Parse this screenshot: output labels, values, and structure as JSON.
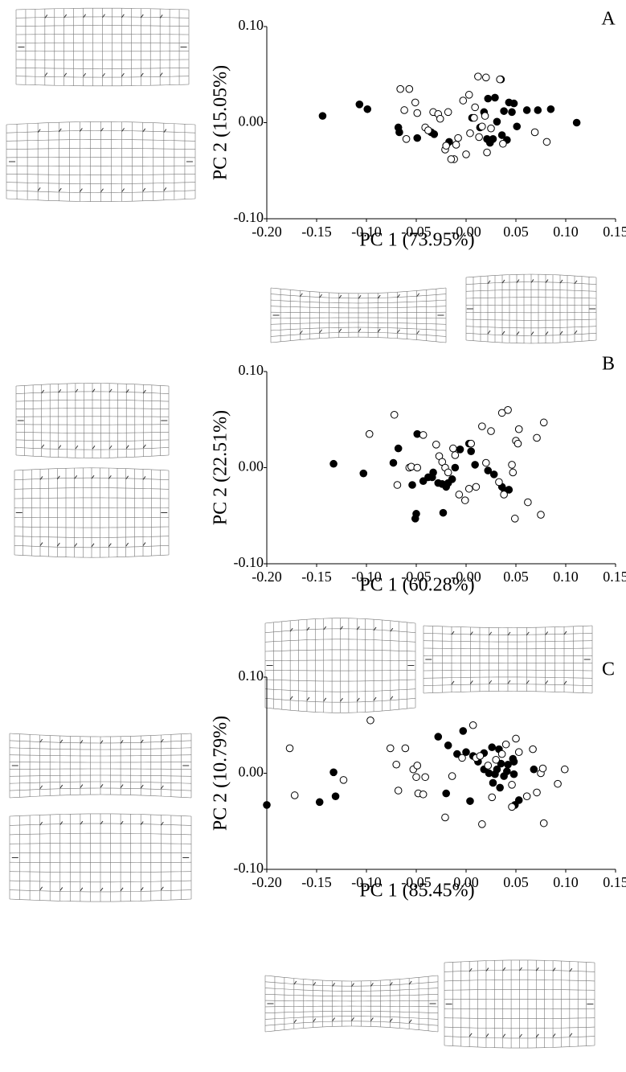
{
  "chart_data": [
    {
      "type": "scatter",
      "panel": "A",
      "xlabel": "PC 1 (73.95%)",
      "ylabel": "PC 2 (15.05%)",
      "xlim": [
        -0.2,
        0.15
      ],
      "ylim": [
        -0.1,
        0.1
      ],
      "xticks": [
        {
          "value": -0.2,
          "label": "-0.20"
        },
        {
          "value": -0.15,
          "label": "-0.15"
        },
        {
          "value": -0.1,
          "label": "-0.10"
        },
        {
          "value": -0.05,
          "label": "-0.05"
        },
        {
          "value": 0,
          "label": "-0.00"
        },
        {
          "value": 0.05,
          "label": "0.05"
        },
        {
          "value": 0.1,
          "label": "0.10"
        },
        {
          "value": 0.15,
          "label": "0.15"
        }
      ],
      "yticks": [
        {
          "value": -0.1,
          "label": "-0.10"
        },
        {
          "value": 0,
          "label": "0.00"
        },
        {
          "value": 0.1,
          "label": "0.10"
        }
      ],
      "series": [
        {
          "marker": "filled",
          "color": "#000000",
          "x": [
            -0.144,
            -0.107,
            -0.099,
            -0.068,
            -0.067,
            -0.049,
            -0.035,
            -0.032,
            -0.017,
            0.006,
            0.014,
            0.018,
            0.022,
            0.024,
            0.029,
            0.031,
            0.035,
            0.036,
            0.038,
            0.041,
            0.043,
            0.048,
            0.046,
            0.051,
            0.061,
            0.072,
            0.085,
            0.111,
            0.021,
            0.027
          ],
          "values": [
            0.007,
            0.019,
            0.014,
            -0.005,
            -0.01,
            -0.016,
            -0.01,
            -0.012,
            -0.02,
            0.005,
            -0.005,
            0.011,
            0.025,
            -0.021,
            0.026,
            0.001,
            0.045,
            -0.013,
            0.012,
            -0.018,
            0.021,
            0.02,
            0.011,
            -0.004,
            0.013,
            0.013,
            0.014,
            0.0,
            -0.017,
            -0.017
          ]
        },
        {
          "marker": "open",
          "color": "#000000",
          "x": [
            -0.066,
            -0.057,
            -0.062,
            -0.051,
            -0.049,
            -0.06,
            -0.041,
            -0.033,
            -0.028,
            -0.026,
            -0.018,
            -0.021,
            -0.02,
            -0.01,
            -0.008,
            0.0,
            -0.012,
            -0.015,
            -0.003,
            0.003,
            0.009,
            0.012,
            0.02,
            0.004,
            0.013,
            0.016,
            0.021,
            0.019,
            0.025,
            0.034,
            0.037,
            0.069,
            0.081,
            -0.038,
            0.008
          ],
          "values": [
            0.035,
            0.035,
            0.013,
            0.021,
            0.01,
            -0.017,
            -0.005,
            0.011,
            0.009,
            0.004,
            0.011,
            -0.028,
            -0.024,
            -0.023,
            -0.016,
            -0.033,
            -0.038,
            -0.038,
            0.023,
            0.029,
            0.016,
            0.048,
            0.047,
            -0.011,
            -0.015,
            -0.004,
            -0.031,
            0.007,
            -0.006,
            0.045,
            -0.022,
            -0.01,
            -0.02,
            -0.008,
            0.005
          ]
        }
      ]
    },
    {
      "type": "scatter",
      "panel": "B",
      "xlabel": "PC 1 (60.28%)",
      "ylabel": "PC 2 (22.51%)",
      "xlim": [
        -0.2,
        0.15
      ],
      "ylim": [
        -0.1,
        0.1
      ],
      "xticks": [
        {
          "value": -0.2,
          "label": "-0.20"
        },
        {
          "value": -0.15,
          "label": "-0.15"
        },
        {
          "value": -0.1,
          "label": "-0.10"
        },
        {
          "value": -0.05,
          "label": "-0.05"
        },
        {
          "value": 0,
          "label": "-0.00"
        },
        {
          "value": 0.05,
          "label": "0.05"
        },
        {
          "value": 0.1,
          "label": "0.10"
        },
        {
          "value": 0.15,
          "label": "0.15"
        }
      ],
      "yticks": [
        {
          "value": -0.1,
          "label": "-0.10"
        },
        {
          "value": 0,
          "label": "0.00"
        },
        {
          "value": 0.1,
          "label": "0.10"
        }
      ],
      "series": [
        {
          "marker": "filled",
          "color": "#000000",
          "x": [
            -0.133,
            -0.103,
            -0.073,
            -0.068,
            -0.054,
            -0.049,
            -0.05,
            -0.051,
            -0.038,
            -0.043,
            -0.033,
            -0.028,
            -0.02,
            -0.024,
            -0.018,
            -0.023,
            -0.011,
            -0.006,
            0.003,
            0.005,
            0.009,
            0.022,
            0.028,
            0.036,
            0.039,
            0.043,
            -0.034,
            -0.014
          ],
          "values": [
            0.004,
            -0.006,
            0.005,
            0.02,
            -0.018,
            0.035,
            -0.048,
            -0.053,
            -0.01,
            -0.014,
            -0.005,
            -0.016,
            -0.02,
            -0.017,
            -0.016,
            -0.047,
            0.0,
            0.019,
            0.025,
            0.017,
            0.003,
            -0.003,
            -0.007,
            -0.02,
            -0.024,
            -0.023,
            -0.01,
            -0.012
          ]
        },
        {
          "marker": "open",
          "color": "#000000",
          "x": [
            -0.097,
            -0.072,
            -0.069,
            -0.057,
            -0.055,
            -0.049,
            -0.043,
            -0.03,
            -0.027,
            -0.024,
            -0.021,
            -0.018,
            -0.011,
            -0.013,
            -0.007,
            0.003,
            -0.001,
            0.005,
            0.01,
            0.016,
            0.02,
            0.025,
            0.033,
            0.036,
            0.042,
            0.046,
            0.047,
            0.05,
            0.053,
            0.052,
            0.049,
            0.062,
            0.071,
            0.075,
            0.078,
            0.038
          ],
          "values": [
            0.035,
            0.055,
            -0.018,
            0.0,
            0.001,
            0.0,
            0.034,
            0.024,
            0.012,
            0.006,
            0.0,
            -0.005,
            0.013,
            0.02,
            -0.028,
            -0.022,
            -0.034,
            0.025,
            -0.02,
            0.043,
            0.005,
            0.038,
            -0.015,
            0.057,
            0.06,
            0.003,
            -0.005,
            0.028,
            0.04,
            0.025,
            -0.053,
            -0.036,
            0.031,
            -0.049,
            0.047,
            -0.028
          ]
        }
      ]
    },
    {
      "type": "scatter",
      "panel": "C",
      "xlabel": "PC 1 (85.45%)",
      "ylabel": "PC 2 (10.79%)",
      "xlim": [
        -0.2,
        0.15
      ],
      "ylim": [
        -0.1,
        0.1
      ],
      "xticks": [
        {
          "value": -0.2,
          "label": "-0.20"
        },
        {
          "value": -0.15,
          "label": "-0.15"
        },
        {
          "value": -0.1,
          "label": "-0.10"
        },
        {
          "value": -0.05,
          "label": "-0.05"
        },
        {
          "value": 0,
          "label": "0.00"
        },
        {
          "value": 0.05,
          "label": "0.05"
        },
        {
          "value": 0.1,
          "label": "0.10"
        },
        {
          "value": 0.15,
          "label": "0.15"
        }
      ],
      "yticks": [
        {
          "value": -0.1,
          "label": "-0.10"
        },
        {
          "value": 0,
          "label": "0.00"
        },
        {
          "value": 0.1,
          "label": "0.10"
        }
      ],
      "series": [
        {
          "marker": "filled",
          "color": "#000000",
          "x": [
            -0.2,
            -0.147,
            -0.133,
            -0.131,
            -0.028,
            -0.02,
            -0.018,
            -0.009,
            -0.003,
            0.0,
            0.004,
            0.007,
            0.012,
            0.018,
            0.018,
            0.023,
            0.026,
            0.031,
            0.033,
            0.029,
            0.035,
            0.041,
            0.042,
            0.047,
            0.048,
            0.053,
            0.049,
            0.068,
            0.027,
            0.034,
            0.038,
            0.048
          ],
          "values": [
            -0.033,
            -0.03,
            0.001,
            -0.024,
            0.038,
            -0.021,
            0.029,
            0.02,
            0.044,
            0.022,
            -0.029,
            0.018,
            0.012,
            0.021,
            0.004,
            0.0,
            0.027,
            0.004,
            0.025,
            -0.001,
            0.01,
            0.002,
            0.009,
            0.015,
            -0.001,
            -0.028,
            -0.033,
            0.004,
            -0.01,
            -0.015,
            -0.003,
            0.012
          ]
        },
        {
          "marker": "open",
          "color": "#000000",
          "x": [
            -0.177,
            -0.172,
            -0.123,
            -0.096,
            -0.076,
            -0.07,
            -0.068,
            -0.061,
            -0.053,
            -0.049,
            -0.05,
            -0.048,
            -0.043,
            -0.041,
            -0.021,
            -0.014,
            -0.004,
            0.007,
            0.01,
            0.014,
            0.016,
            0.022,
            0.026,
            0.03,
            0.036,
            0.04,
            0.046,
            0.05,
            0.053,
            0.061,
            0.067,
            0.071,
            0.075,
            0.078,
            0.092,
            0.099,
            0.077,
            0.046
          ],
          "values": [
            0.026,
            -0.023,
            -0.007,
            0.055,
            0.026,
            0.009,
            -0.018,
            0.026,
            0.004,
            0.008,
            -0.004,
            -0.021,
            -0.022,
            -0.004,
            -0.046,
            -0.003,
            0.016,
            0.05,
            0.016,
            0.018,
            -0.053,
            0.008,
            -0.025,
            0.014,
            0.02,
            0.03,
            -0.035,
            0.036,
            0.022,
            -0.024,
            0.025,
            -0.02,
            0.0,
            -0.052,
            -0.011,
            0.004,
            0.005,
            -0.012
          ]
        }
      ]
    }
  ]
}
